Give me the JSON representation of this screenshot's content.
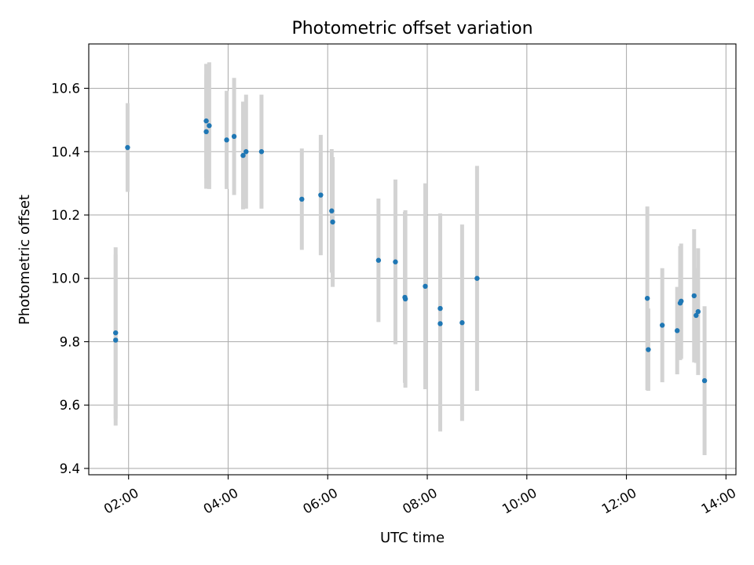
{
  "chart_data": {
    "type": "scatter",
    "title": "Photometric offset variation",
    "xlabel": "UTC time",
    "ylabel": "Photometric offset",
    "x_unit": "hours",
    "xlim": [
      1.2,
      14.2
    ],
    "ylim": [
      9.38,
      10.74
    ],
    "x_ticks": [
      {
        "value": 2,
        "label": "02:00"
      },
      {
        "value": 4,
        "label": "04:00"
      },
      {
        "value": 6,
        "label": "06:00"
      },
      {
        "value": 8,
        "label": "08:00"
      },
      {
        "value": 10,
        "label": "10:00"
      },
      {
        "value": 12,
        "label": "12:00"
      },
      {
        "value": 14,
        "label": "14:00"
      }
    ],
    "y_ticks": [
      {
        "value": 9.4,
        "label": "9.4"
      },
      {
        "value": 9.6,
        "label": "9.6"
      },
      {
        "value": 9.8,
        "label": "9.8"
      },
      {
        "value": 10.0,
        "label": "10.0"
      },
      {
        "value": 10.2,
        "label": "10.2"
      },
      {
        "value": 10.4,
        "label": "10.4"
      },
      {
        "value": 10.6,
        "label": "10.6"
      }
    ],
    "grid": true,
    "point_color": "#1f77b4",
    "errorbar_color": "#d3d3d3",
    "points": [
      {
        "x": 1.74,
        "y": 9.828,
        "err": 0.27
      },
      {
        "x": 1.74,
        "y": 9.805,
        "err": 0.27
      },
      {
        "x": 1.98,
        "y": 10.413,
        "err": 0.14
      },
      {
        "x": 3.56,
        "y": 10.497,
        "err": 0.18
      },
      {
        "x": 3.56,
        "y": 10.463,
        "err": 0.18
      },
      {
        "x": 3.62,
        "y": 10.482,
        "err": 0.2
      },
      {
        "x": 3.97,
        "y": 10.437,
        "err": 0.155
      },
      {
        "x": 4.12,
        "y": 10.448,
        "err": 0.185
      },
      {
        "x": 4.3,
        "y": 10.388,
        "err": 0.17
      },
      {
        "x": 4.36,
        "y": 10.4,
        "err": 0.18
      },
      {
        "x": 4.67,
        "y": 10.4,
        "err": 0.18
      },
      {
        "x": 5.48,
        "y": 10.25,
        "err": 0.16
      },
      {
        "x": 5.86,
        "y": 10.263,
        "err": 0.19
      },
      {
        "x": 6.08,
        "y": 10.213,
        "err": 0.195
      },
      {
        "x": 6.1,
        "y": 10.178,
        "err": 0.205
      },
      {
        "x": 7.02,
        "y": 10.057,
        "err": 0.195
      },
      {
        "x": 7.36,
        "y": 10.052,
        "err": 0.26
      },
      {
        "x": 7.55,
        "y": 9.94,
        "err": 0.27
      },
      {
        "x": 7.56,
        "y": 9.935,
        "err": 0.28
      },
      {
        "x": 7.96,
        "y": 9.975,
        "err": 0.325
      },
      {
        "x": 8.26,
        "y": 9.905,
        "err": 0.3
      },
      {
        "x": 8.26,
        "y": 9.857,
        "err": 0.34
      },
      {
        "x": 8.7,
        "y": 9.86,
        "err": 0.31
      },
      {
        "x": 9.0,
        "y": 10.0,
        "err": 0.355
      },
      {
        "x": 12.42,
        "y": 9.937,
        "err": 0.29
      },
      {
        "x": 12.44,
        "y": 9.775,
        "err": 0.13
      },
      {
        "x": 12.72,
        "y": 9.852,
        "err": 0.18
      },
      {
        "x": 13.02,
        "y": 9.835,
        "err": 0.138
      },
      {
        "x": 13.08,
        "y": 9.922,
        "err": 0.18
      },
      {
        "x": 13.1,
        "y": 9.928,
        "err": 0.182
      },
      {
        "x": 13.36,
        "y": 9.945,
        "err": 0.21
      },
      {
        "x": 13.4,
        "y": 9.883,
        "err": 0.15
      },
      {
        "x": 13.44,
        "y": 9.895,
        "err": 0.2
      },
      {
        "x": 13.57,
        "y": 9.677,
        "err": 0.235
      }
    ]
  }
}
